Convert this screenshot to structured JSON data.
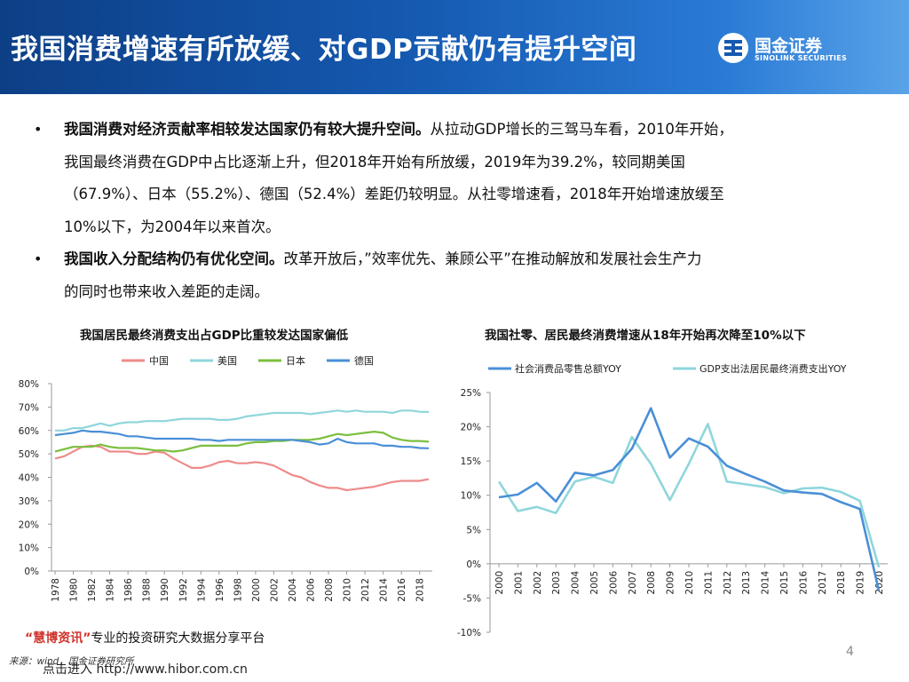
{
  "header": {
    "title": "我国消费增速有所放缓、对GDP贡献仍有提升空间",
    "logo_cn": "国金证券",
    "logo_en": "SINOLINK SECURITIES"
  },
  "bullets": [
    {
      "bold": "我国消费对经济贡献率相较发达国家仍有较大提升空间。",
      "lines": [
        "从拉动GDP增长的三驾马车看，2010年开始，",
        "我国最终消费在GDP中占比逐渐上升，但2018年开始有所放缓，2019年为39.2%，较同期美国",
        "（67.9%）、日本（55.2%）、德国（52.4%）差距仍较明显。从社零增速看，2018年开始增速放缓至",
        "10%以下，为2004年以来首次。"
      ]
    },
    {
      "bold": "我国收入分配结构仍有优化空间。",
      "lines": [
        "改革开放后，”效率优先、兼顾公平”在推动解放和发展社会生产力",
        "的同时也带来收入差距的走阔。"
      ]
    }
  ],
  "chart_data": [
    {
      "type": "line",
      "title": "我国居民最终消费支出占GDP比重较发达国家偏低",
      "x": [
        1978,
        1979,
        1980,
        1981,
        1982,
        1983,
        1984,
        1985,
        1986,
        1987,
        1988,
        1989,
        1990,
        1991,
        1992,
        1993,
        1994,
        1995,
        1996,
        1997,
        1998,
        1999,
        2000,
        2001,
        2002,
        2003,
        2004,
        2005,
        2006,
        2007,
        2008,
        2009,
        2010,
        2011,
        2012,
        2013,
        2014,
        2015,
        2016,
        2017,
        2018,
        2019
      ],
      "x_tick_labels": [
        "1978",
        "1980",
        "1982",
        "1984",
        "1986",
        "1988",
        "1990",
        "1992",
        "1994",
        "1996",
        "1998",
        "2000",
        "2002",
        "2004",
        "2006",
        "2008",
        "2010",
        "2012",
        "2014",
        "2016",
        "2018"
      ],
      "y_tick_labels": [
        "0%",
        "10%",
        "20%",
        "30%",
        "40%",
        "50%",
        "60%",
        "70%",
        "80%"
      ],
      "ylim": [
        0,
        80
      ],
      "legend_position": "top",
      "series": [
        {
          "name": "中国",
          "color": "#ee8b8b",
          "values": [
            48,
            49,
            51,
            53,
            53.5,
            53,
            51,
            51,
            51,
            50,
            50,
            51,
            50.5,
            48,
            46,
            44,
            44,
            45,
            46.5,
            47,
            46,
            46,
            46.5,
            46,
            45,
            43,
            41,
            40,
            38,
            36.5,
            35.5,
            35.5,
            34.5,
            35,
            35.5,
            36,
            37,
            38,
            38.5,
            38.5,
            38.5,
            39.2
          ]
        },
        {
          "name": "美国",
          "color": "#8fd6dc",
          "values": [
            60,
            60,
            61,
            61,
            62,
            63,
            62,
            63,
            63.5,
            63.5,
            64,
            64,
            64,
            64.5,
            65,
            65,
            65,
            65,
            64.5,
            64.5,
            65,
            66,
            66.5,
            67,
            67.5,
            67.5,
            67.5,
            67.5,
            67,
            67.5,
            68,
            68.5,
            68,
            68.5,
            68,
            68,
            68,
            67.5,
            68.5,
            68.5,
            68,
            67.9
          ]
        },
        {
          "name": "日本",
          "color": "#7bbf3f",
          "values": [
            51,
            52,
            53,
            53,
            53,
            54,
            53,
            52.5,
            52.5,
            52.5,
            52,
            51.5,
            51.5,
            51,
            51.5,
            52.5,
            53.5,
            53.5,
            53.5,
            53.5,
            53.5,
            54.5,
            55,
            55,
            55.5,
            55.5,
            56,
            56,
            56,
            56.5,
            57.5,
            58.5,
            58,
            58.5,
            59,
            59.5,
            59,
            57,
            56,
            55.5,
            55.5,
            55.2
          ]
        },
        {
          "name": "德国",
          "color": "#4a8fd6",
          "values": [
            58,
            58.5,
            59,
            60,
            59.5,
            59.5,
            59,
            58.5,
            57.5,
            57.5,
            57,
            56.5,
            56.5,
            56.5,
            56.5,
            56.5,
            56,
            56,
            55.5,
            56,
            56,
            56,
            56,
            56,
            56,
            56,
            56,
            55.5,
            55,
            54,
            54.5,
            56.5,
            55,
            54.5,
            54.5,
            54.5,
            53.5,
            53.5,
            53,
            53,
            52.5,
            52.4
          ]
        }
      ]
    },
    {
      "type": "line",
      "title": "我国社零、居民最终消费增速从18年开始再次降至10%以下",
      "x": [
        "2000",
        "2001",
        "2002",
        "2003",
        "2004",
        "2005",
        "2006",
        "2007",
        "2008",
        "2009",
        "2010",
        "2011",
        "2012",
        "2013",
        "2014",
        "2015",
        "2016",
        "2017",
        "2018",
        "2019",
        "2020"
      ],
      "y_tick_labels": [
        "25%",
        "20%",
        "15%",
        "10%",
        "5%",
        "0%",
        "-5%",
        "-10%"
      ],
      "ylim": [
        -10,
        25
      ],
      "legend_position": "top",
      "series": [
        {
          "name": "社会消费品零售总额YOY",
          "color": "#4a8fd6",
          "values": [
            9.7,
            10.1,
            11.8,
            9.1,
            13.3,
            12.9,
            13.7,
            16.8,
            22.7,
            15.5,
            18.3,
            17.1,
            14.3,
            13.1,
            12.0,
            10.7,
            10.4,
            10.2,
            9.0,
            8.0,
            -3.9
          ]
        },
        {
          "name": "GDP支出法居民最终消费支出YOY",
          "color": "#8fd6dc",
          "values": [
            12.0,
            7.7,
            8.3,
            7.4,
            12.0,
            12.7,
            11.8,
            18.5,
            14.6,
            9.3,
            14.6,
            20.4,
            12.0,
            11.6,
            11.2,
            10.3,
            11.0,
            11.1,
            10.5,
            9.2,
            -0.5
          ]
        }
      ]
    }
  ],
  "footer": {
    "watermark_open": "“",
    "watermark_brand": "慧博资讯",
    "watermark_close": "”",
    "watermark_rest": "专业的投资研究大数据分享平台",
    "source": "来源：wind，国金证券研究所",
    "link": "点击进入 http://www.hibor.com.cn",
    "page_number": "4"
  },
  "colors": {
    "header_dark": "#0d3f86",
    "header_light": "#5aa3e8"
  }
}
